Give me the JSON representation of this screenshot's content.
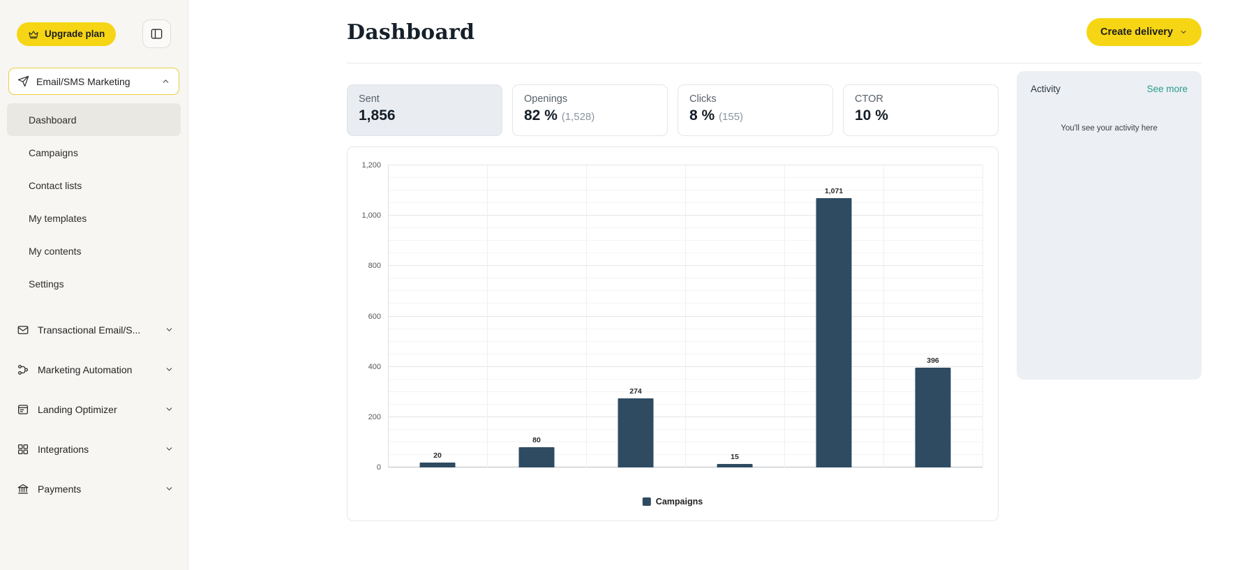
{
  "colors": {
    "accent_yellow": "#f6d514",
    "bar": "#2e4b61",
    "link_teal": "#279c8e",
    "selected_card_bg": "#e9edf2"
  },
  "sidebar": {
    "upgrade_label": "Upgrade plan",
    "main_section": {
      "label": "Email/SMS Marketing",
      "icon": "paper-plane",
      "items": [
        {
          "label": "Dashboard",
          "active": true
        },
        {
          "label": "Campaigns",
          "active": false
        },
        {
          "label": "Contact lists",
          "active": false
        },
        {
          "label": "My templates",
          "active": false
        },
        {
          "label": "My contents",
          "active": false
        },
        {
          "label": "Settings",
          "active": false
        }
      ]
    },
    "sections": [
      {
        "label": "Transactional Email/S...",
        "icon": "envelope"
      },
      {
        "label": "Marketing Automation",
        "icon": "automation"
      },
      {
        "label": "Landing Optimizer",
        "icon": "landing-page"
      },
      {
        "label": "Integrations",
        "icon": "grid"
      },
      {
        "label": "Payments",
        "icon": "bank"
      }
    ]
  },
  "header": {
    "title": "Dashboard",
    "create_delivery_label": "Create delivery"
  },
  "stats": [
    {
      "label": "Sent",
      "value": "1,856",
      "sub": "",
      "selected": true
    },
    {
      "label": "Openings",
      "value": "82 %",
      "sub": "(1,528)",
      "selected": false
    },
    {
      "label": "Clicks",
      "value": "8 %",
      "sub": "(155)",
      "selected": false
    },
    {
      "label": "CTOR",
      "value": "10 %",
      "sub": "",
      "selected": false
    }
  ],
  "activity": {
    "title": "Activity",
    "see_more_label": "See more",
    "empty_text": "You'll see your activity here"
  },
  "chart_data": {
    "type": "bar",
    "categories": [
      "",
      "",
      "",
      "",
      "",
      ""
    ],
    "values": [
      20,
      80,
      274,
      15,
      1071,
      396
    ],
    "value_labels": [
      "20",
      "80",
      "274",
      "15",
      "1,071",
      "396"
    ],
    "title": "",
    "xlabel": "",
    "ylabel": "",
    "ylim": [
      0,
      1200
    ],
    "ytick_step_major": 200,
    "ytick_step_minor": 50,
    "yticks": [
      "0",
      "200",
      "400",
      "600",
      "800",
      "1,000",
      "1,200"
    ],
    "grid": true,
    "legend_position": "bottom",
    "legend": [
      {
        "name": "Campaigns",
        "color": "#2e4b61"
      }
    ]
  }
}
